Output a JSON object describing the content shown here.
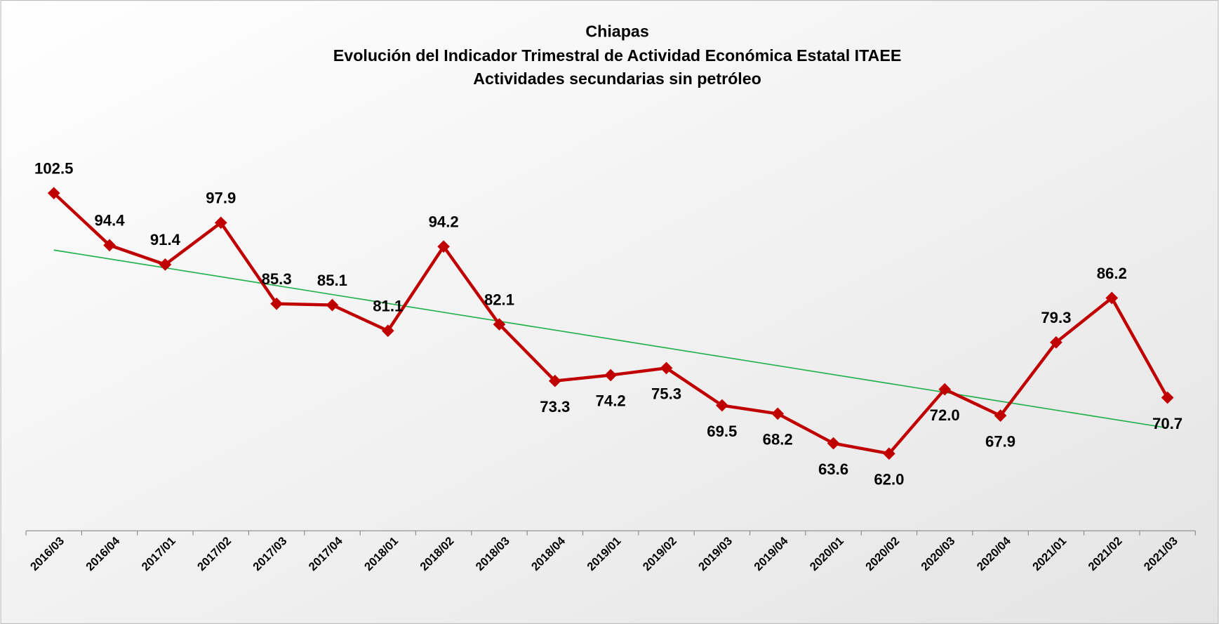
{
  "chart_data": {
    "type": "line",
    "title": "Chiapas",
    "subtitle": [
      "Evolución del Indicador Trimestral de Actividad Económica Estatal ITAEE",
      "Actividades secundarias sin petróleo"
    ],
    "categories": [
      "2016/03",
      "2016/04",
      "2017/01",
      "2017/02",
      "2017/03",
      "2017/04",
      "2018/01",
      "2018/02",
      "2018/03",
      "2018/04",
      "2019/01",
      "2019/02",
      "2019/03",
      "2019/04",
      "2020/01",
      "2020/02",
      "2020/03",
      "2020/04",
      "2021/01",
      "2021/02",
      "2021/03"
    ],
    "series": [
      {
        "color": "#c00000",
        "values": [
          102.5,
          94.4,
          91.4,
          97.9,
          85.3,
          85.1,
          81.1,
          94.2,
          82.1,
          73.3,
          74.2,
          75.3,
          69.5,
          68.2,
          63.6,
          62.0,
          72.0,
          67.9,
          79.3,
          86.2,
          70.7
        ],
        "value_labels": [
          "102.5",
          "94.4",
          "91.4",
          "97.9",
          "85.3",
          "85.1",
          "81.1",
          "94.2",
          "82.1",
          "73.3",
          "74.2",
          "75.3",
          "69.5",
          "68.2",
          "63.6",
          "62.0",
          "72.0",
          "67.9",
          "79.3",
          "86.2",
          "70.7"
        ]
      }
    ],
    "ylim": [
      50,
      130
    ],
    "trendline": "linear",
    "trendline_color": "#22b14c",
    "grid": false
  }
}
